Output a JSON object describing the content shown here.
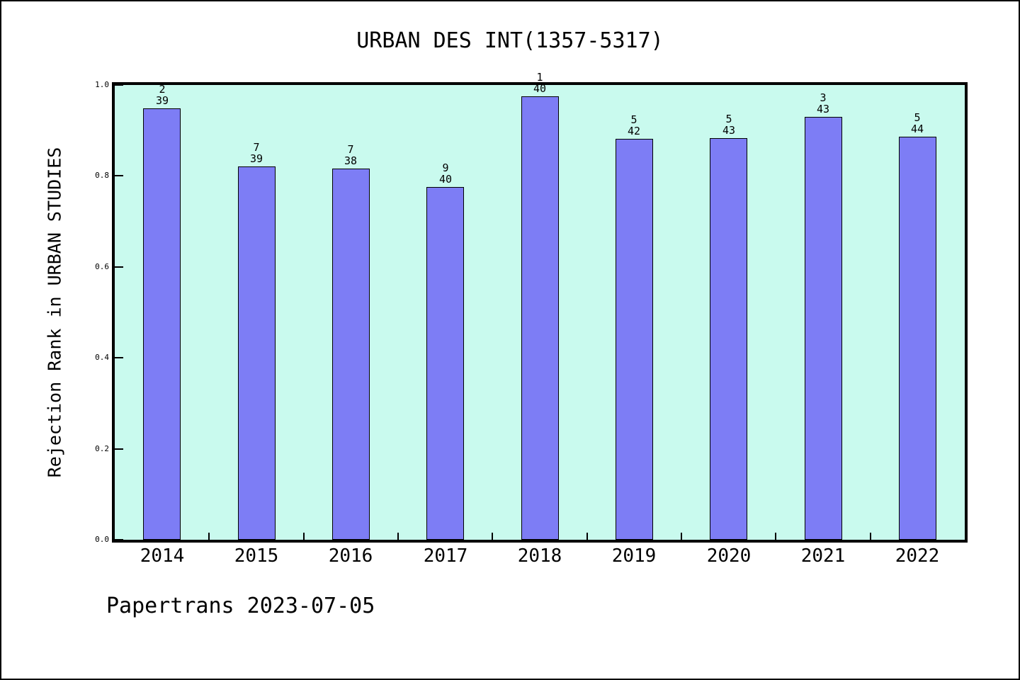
{
  "chart_data": {
    "type": "bar",
    "title": "URBAN DES INT(1357-5317)",
    "xlabel": "",
    "ylabel": "Rejection Rank in URBAN STUDIES",
    "categories": [
      "2014",
      "2015",
      "2016",
      "2017",
      "2018",
      "2019",
      "2020",
      "2021",
      "2022"
    ],
    "series": [
      {
        "name": "rejection-rank",
        "values": [
          0.9487,
          0.8205,
          0.8158,
          0.775,
          0.975,
          0.881,
          0.8837,
          0.9302,
          0.8864
        ]
      }
    ],
    "bar_top_labels": [
      "2",
      "7",
      "7",
      "9",
      "1",
      "5",
      "5",
      "3",
      "5"
    ],
    "bar_bottom_labels": [
      "39",
      "39",
      "38",
      "40",
      "40",
      "42",
      "43",
      "43",
      "44"
    ],
    "ylim": [
      0,
      1
    ],
    "yticks": [
      {
        "label": "0.0",
        "value": 0.0
      },
      {
        "label": "0.2",
        "value": 0.2
      },
      {
        "label": "0.4",
        "value": 0.4
      },
      {
        "label": "0.6",
        "value": 0.6
      },
      {
        "label": "0.8",
        "value": 0.8
      },
      {
        "label": "1.0",
        "value": 1.0
      }
    ],
    "grid": false,
    "legend": null,
    "bar_color": "#7d7df5",
    "bar_edge_color": "#000000",
    "plot_bg": "#c9faee",
    "frame_color": "#000000"
  },
  "footer": {
    "watermark": "Papertrans 2023-07-05"
  }
}
